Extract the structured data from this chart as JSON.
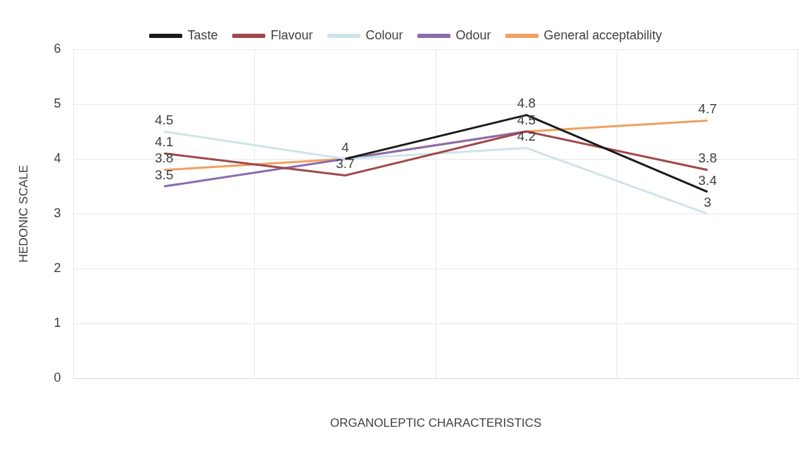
{
  "chart_data": {
    "type": "line",
    "xlabel": "ORGANOLEPTIC CHARACTERISTICS",
    "ylabel": "HEDONIC SCALE",
    "categories": [
      null,
      null,
      null,
      null
    ],
    "series": [
      {
        "name": "Taste",
        "color": "#1a1a1a",
        "values": [
          null,
          4,
          4.8,
          3.4
        ],
        "value_labels": [
          null,
          "4",
          "4.8",
          "3.4"
        ]
      },
      {
        "name": "Flavour",
        "color": "#a0484a",
        "values": [
          4.1,
          3.7,
          4.5,
          3.8
        ],
        "value_labels": [
          "4.1",
          "3.7",
          "4.5",
          "3.8"
        ]
      },
      {
        "name": "Colour",
        "color": "#cfe3ea",
        "values": [
          4.5,
          4.0,
          4.2,
          3.0
        ],
        "value_labels": [
          "4.5",
          null,
          "4.2",
          "3"
        ]
      },
      {
        "name": "Odour",
        "color": "#8a6cae",
        "values": [
          3.5,
          4.0,
          4.5,
          null
        ],
        "value_labels": [
          "3.5",
          null,
          null,
          null
        ]
      },
      {
        "name": "General acceptability",
        "color": "#f0a060",
        "values": [
          3.8,
          4.0,
          4.5,
          4.7
        ],
        "value_labels": [
          "3.8",
          null,
          null,
          "4.7"
        ]
      }
    ],
    "ylim": [
      0,
      6
    ],
    "yticks": [
      0,
      1,
      2,
      3,
      4,
      5,
      6
    ],
    "grid": true,
    "legend": "top",
    "marker": "none",
    "line_style": "solid"
  }
}
